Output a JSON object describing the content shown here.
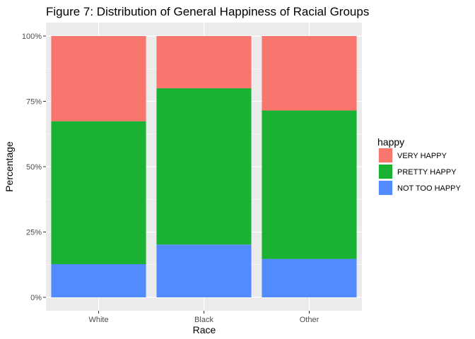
{
  "chart_data": {
    "type": "bar",
    "stacked": true,
    "normalized": true,
    "title": "Figure 7: Distribution of General Happiness of Racial Groups",
    "xlabel": "Race",
    "ylabel": "Percentage",
    "categories": [
      "White",
      "Black",
      "Other"
    ],
    "series": [
      {
        "name": "VERY HAPPY",
        "color": "#F8766D",
        "values": [
          32.6,
          20.0,
          28.5
        ]
      },
      {
        "name": "PRETTY HAPPY",
        "color": "#19B232",
        "values": [
          54.7,
          59.8,
          56.8
        ]
      },
      {
        "name": "NOT TOO HAPPY",
        "color": "#518BFF",
        "values": [
          12.7,
          20.2,
          14.7
        ]
      }
    ],
    "ylim": [
      0,
      100
    ],
    "yticks": [
      0,
      25,
      50,
      75,
      100
    ],
    "ytick_labels": [
      "0%",
      "25%",
      "50%",
      "75%",
      "100%"
    ],
    "legend": {
      "title": "happy",
      "position": "right"
    },
    "grid": true,
    "panel_background": "#EBEBEB"
  }
}
